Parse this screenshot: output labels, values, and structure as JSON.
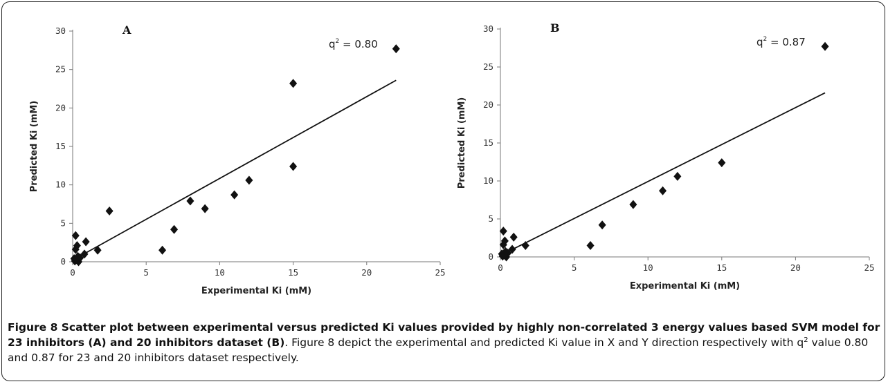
{
  "chart_data": [
    {
      "type": "scatter",
      "panel": "A",
      "annotation": {
        "prefix": "q",
        "sup": "2",
        "suffix": " = 0.80"
      },
      "xlabel": "Experimental Ki (mM)",
      "ylabel": "Predicted Ki (mM)",
      "xlim": [
        0,
        25
      ],
      "ylim": [
        0,
        30
      ],
      "xticks": [
        "0",
        "5",
        "10",
        "15",
        "20",
        "25"
      ],
      "yticks": [
        "0",
        "5",
        "10",
        "15",
        "20",
        "25",
        "30"
      ],
      "grid": false,
      "trendline": {
        "x": [
          0,
          22
        ],
        "y": [
          0.2,
          23.6
        ]
      },
      "points": {
        "x": [
          0.1,
          0.2,
          0.2,
          0.3,
          0.3,
          0.4,
          0.5,
          0.8,
          0.9,
          1.7,
          2.5,
          6.1,
          6.9,
          8.0,
          9.0,
          11.0,
          12.0,
          15.0,
          15.0,
          22.0,
          0.15,
          0.25,
          0.35
        ],
        "y": [
          0.4,
          3.4,
          1.6,
          0.2,
          2.1,
          0.0,
          0.5,
          1.0,
          2.6,
          1.5,
          6.6,
          1.5,
          4.2,
          7.9,
          6.9,
          8.7,
          10.6,
          23.2,
          12.4,
          27.7,
          0.1,
          0.3,
          0.7
        ]
      }
    },
    {
      "type": "scatter",
      "panel": "B",
      "annotation": {
        "prefix": "q",
        "sup": "2",
        "suffix": " = 0.87"
      },
      "xlabel": "Experimental Ki (mM)",
      "ylabel": "Predicted Ki (mM)",
      "xlim": [
        0,
        25
      ],
      "ylim": [
        0,
        30
      ],
      "xticks": [
        "0",
        "5",
        "10",
        "15",
        "20",
        "25"
      ],
      "yticks": [
        "0",
        "5",
        "10",
        "15",
        "20",
        "25",
        "30"
      ],
      "grid": false,
      "trendline": {
        "x": [
          0,
          22
        ],
        "y": [
          0.2,
          21.6
        ]
      },
      "points": {
        "x": [
          0.1,
          0.2,
          0.2,
          0.3,
          0.3,
          0.4,
          0.5,
          0.8,
          0.9,
          1.7,
          6.1,
          6.9,
          9.0,
          11.0,
          12.0,
          15.0,
          22.0,
          0.15,
          0.25,
          0.35
        ],
        "y": [
          0.4,
          3.4,
          1.6,
          0.2,
          2.1,
          0.0,
          0.5,
          1.0,
          2.6,
          1.5,
          1.5,
          4.2,
          6.9,
          8.7,
          10.6,
          12.4,
          27.7,
          0.1,
          0.3,
          0.7
        ]
      }
    }
  ],
  "caption": {
    "title": "Figure 8 Scatter plot between experimental versus predicted Ki values provided by highly non-correlated 3 energy values based SVM model for 23 inhibitors (A) and 20 inhibitors dataset (B)",
    "text_part1": ". Figure 8 depict the experimental and predicted Ki value in X and Y direction respectively with q",
    "text_sup": "2",
    "text_part2": " value 0.80 and 0.87 for 23 and 20 inhibitors dataset respectively."
  }
}
